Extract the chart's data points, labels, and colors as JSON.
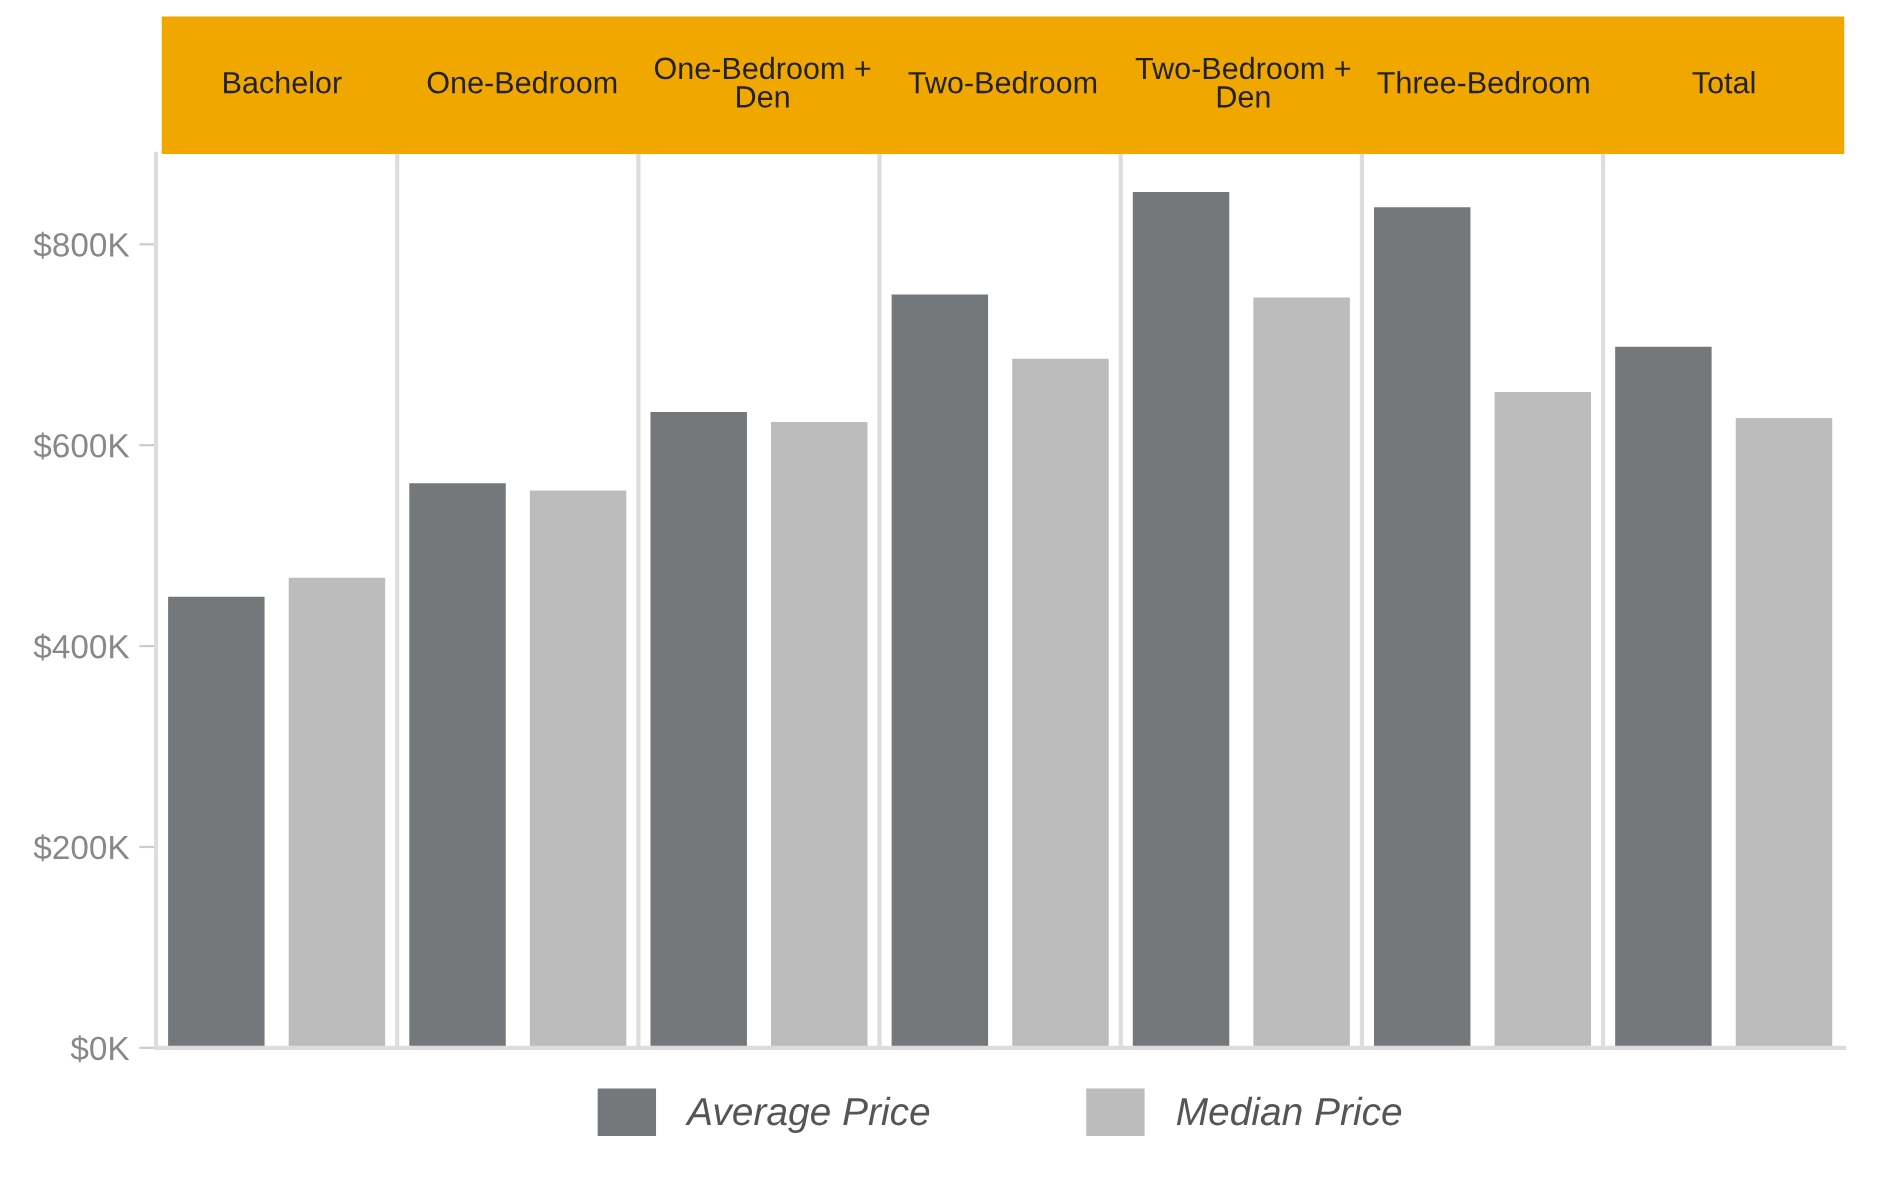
{
  "chart_data": {
    "type": "bar",
    "categories": [
      "Bachelor",
      "One-Bedroom",
      "One-Bedroom + Den",
      "Two-Bedroom",
      "Two-Bedroom + Den",
      "Three-Bedroom",
      "Total"
    ],
    "series": [
      {
        "name": "Average Price",
        "color": "#75787b",
        "values": [
          449000,
          562000,
          633000,
          750000,
          852000,
          837000,
          698000
        ]
      },
      {
        "name": "Median Price",
        "color": "#bbbcbb",
        "values": [
          468000,
          555000,
          623000,
          686000,
          747000,
          653000,
          627000
        ]
      }
    ],
    "ylim": [
      0,
      890000
    ],
    "yticks": [
      {
        "value": 0,
        "label": "$0K"
      },
      {
        "value": 200000,
        "label": "$200K"
      },
      {
        "value": 400000,
        "label": "$400K"
      },
      {
        "value": 600000,
        "label": "$600K"
      },
      {
        "value": 800000,
        "label": "$800K"
      }
    ],
    "grid": false,
    "legend": "bottom"
  }
}
